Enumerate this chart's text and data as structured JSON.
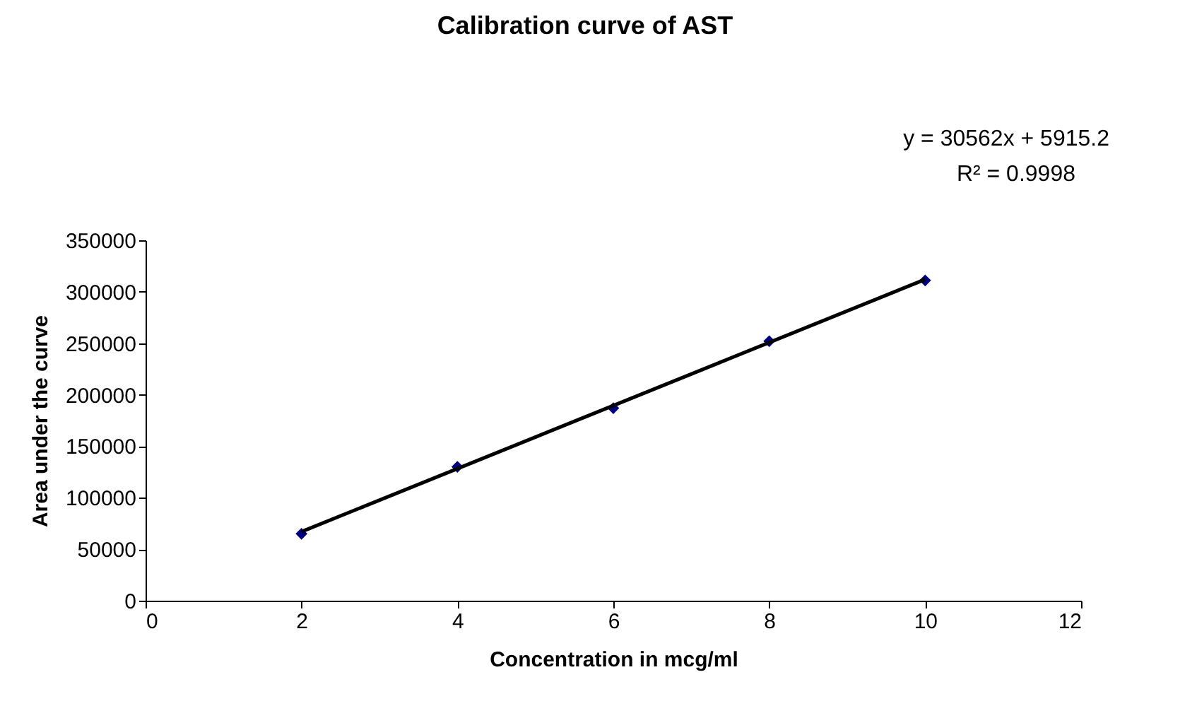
{
  "chart_data": {
    "type": "scatter",
    "title": "Calibration curve of AST",
    "xlabel": "Concentration in mcg/ml",
    "ylabel": "Area under the curve",
    "x": [
      2,
      4,
      6,
      8,
      10
    ],
    "series": [
      {
        "color": "#000080",
        "values": [
          65000,
          130000,
          187000,
          252000,
          311000
        ],
        "marker": "diamond"
      },
      {
        "type": "line",
        "color": "#000000",
        "x": [
          2,
          10
        ],
        "values": [
          67000,
          312000
        ],
        "marker": "none",
        "line_style": "solid"
      }
    ],
    "xlim": [
      0,
      12
    ],
    "xticks": [
      0,
      2,
      4,
      6,
      8,
      10,
      12
    ],
    "ylim": [
      0,
      350000
    ],
    "yticks": [
      0,
      50000,
      100000,
      150000,
      200000,
      250000,
      300000,
      350000
    ],
    "annotations": [
      "y = 30562x + 5915.2",
      "R² = 0.9998"
    ],
    "grid": false
  }
}
